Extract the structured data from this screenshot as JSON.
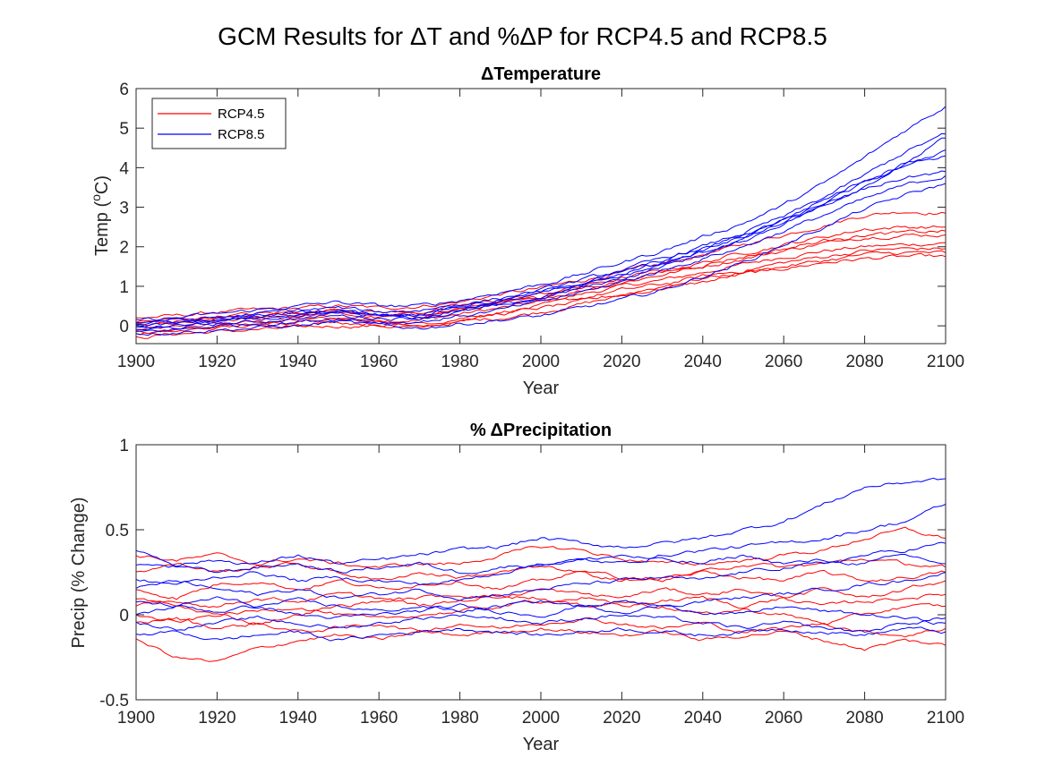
{
  "figure": {
    "title_prefix": "GCM Results for ",
    "title_delta_t": "T",
    "title_mid": " and %",
    "title_delta_p": "P",
    "title_suffix": " for RCP4.5 and RCP8.5"
  },
  "colors": {
    "rcp45": "#ff0000",
    "rcp85": "#0000ff",
    "axis": "#262626"
  },
  "chart_data": [
    {
      "type": "line",
      "title": "Temperature",
      "title_prefix_symbol": "delta",
      "xlabel": "Year",
      "ylabel": "Temp (°C)",
      "ylabel_parts": {
        "main": "Temp (",
        "sup": "o",
        "unit": "C)"
      },
      "xlim": [
        1900,
        2100
      ],
      "ylim": [
        -0.45,
        6
      ],
      "xticks": [
        1900,
        1920,
        1940,
        1960,
        1980,
        2000,
        2020,
        2040,
        2060,
        2080,
        2100
      ],
      "yticks": [
        0,
        1,
        2,
        3,
        4,
        5,
        6
      ],
      "legend": {
        "position": "top-left",
        "entries": [
          "RCP4.5",
          "RCP8.5"
        ]
      },
      "x": [
        1900,
        1910,
        1920,
        1930,
        1940,
        1950,
        1960,
        1970,
        1980,
        1990,
        2000,
        2010,
        2020,
        2030,
        2040,
        2050,
        2060,
        2070,
        2080,
        2090,
        2100
      ],
      "series": [
        {
          "name": "RCP4.5",
          "values": [
            -0.1,
            -0.05,
            0.05,
            0.1,
            0.15,
            0.2,
            0.15,
            0.15,
            0.3,
            0.45,
            0.6,
            0.8,
            1.0,
            1.15,
            1.35,
            1.55,
            1.75,
            1.9,
            2.0,
            2.05,
            2.1
          ]
        },
        {
          "name": "RCP4.5",
          "values": [
            0.2,
            0.25,
            0.35,
            0.4,
            0.45,
            0.5,
            0.45,
            0.5,
            0.6,
            0.8,
            0.95,
            1.15,
            1.35,
            1.55,
            1.8,
            2.05,
            2.3,
            2.55,
            2.8,
            2.9,
            2.85
          ]
        },
        {
          "name": "RCP4.5",
          "values": [
            -0.3,
            -0.2,
            -0.15,
            -0.1,
            -0.05,
            0.0,
            0.0,
            -0.05,
            0.1,
            0.2,
            0.35,
            0.55,
            0.75,
            0.95,
            1.1,
            1.3,
            1.45,
            1.6,
            1.7,
            1.75,
            1.75
          ]
        },
        {
          "name": "RCP4.5",
          "values": [
            0.0,
            0.05,
            0.1,
            0.2,
            0.25,
            0.3,
            0.2,
            0.25,
            0.4,
            0.55,
            0.7,
            0.9,
            1.1,
            1.3,
            1.5,
            1.7,
            1.9,
            2.1,
            2.25,
            2.3,
            2.3
          ]
        },
        {
          "name": "RCP4.5",
          "values": [
            -0.15,
            -0.1,
            0.0,
            0.05,
            0.1,
            0.15,
            0.1,
            0.05,
            0.2,
            0.35,
            0.5,
            0.7,
            0.9,
            1.05,
            1.25,
            1.4,
            1.6,
            1.75,
            1.9,
            1.95,
            1.95
          ]
        },
        {
          "name": "RCP4.5",
          "values": [
            0.1,
            0.15,
            0.25,
            0.3,
            0.35,
            0.4,
            0.35,
            0.35,
            0.5,
            0.65,
            0.8,
            1.0,
            1.2,
            1.4,
            1.6,
            1.85,
            2.05,
            2.25,
            2.45,
            2.5,
            2.5
          ]
        },
        {
          "name": "RCP4.5",
          "values": [
            -0.2,
            -0.15,
            -0.05,
            0.0,
            0.05,
            0.1,
            0.05,
            0.0,
            0.15,
            0.3,
            0.45,
            0.6,
            0.8,
            1.0,
            1.2,
            1.35,
            1.5,
            1.65,
            1.8,
            1.85,
            1.85
          ]
        },
        {
          "name": "RCP4.5",
          "values": [
            0.05,
            0.1,
            0.2,
            0.25,
            0.3,
            0.35,
            0.25,
            0.3,
            0.45,
            0.6,
            0.75,
            0.95,
            1.15,
            1.35,
            1.55,
            1.75,
            1.95,
            2.15,
            2.3,
            2.35,
            2.4
          ]
        },
        {
          "name": "RCP8.5",
          "values": [
            -0.1,
            -0.05,
            0.05,
            0.1,
            0.2,
            0.25,
            0.2,
            0.2,
            0.35,
            0.5,
            0.7,
            0.95,
            1.2,
            1.5,
            1.8,
            2.15,
            2.6,
            3.05,
            3.55,
            4.1,
            4.75
          ]
        },
        {
          "name": "RCP8.5",
          "values": [
            0.15,
            0.2,
            0.3,
            0.4,
            0.5,
            0.6,
            0.5,
            0.5,
            0.65,
            0.85,
            1.05,
            1.3,
            1.6,
            1.9,
            2.25,
            2.6,
            3.05,
            3.6,
            4.25,
            4.95,
            5.55
          ]
        },
        {
          "name": "RCP8.5",
          "values": [
            -0.2,
            -0.15,
            -0.1,
            -0.05,
            0.0,
            0.1,
            0.0,
            -0.05,
            0.05,
            0.15,
            0.25,
            0.45,
            0.65,
            0.9,
            1.25,
            1.6,
            2.05,
            2.5,
            2.95,
            3.3,
            3.6
          ]
        },
        {
          "name": "RCP8.5",
          "values": [
            0.0,
            0.05,
            0.15,
            0.2,
            0.3,
            0.35,
            0.3,
            0.3,
            0.45,
            0.6,
            0.8,
            1.05,
            1.3,
            1.6,
            1.9,
            2.25,
            2.65,
            3.05,
            3.45,
            3.75,
            3.9
          ]
        },
        {
          "name": "RCP8.5",
          "values": [
            -0.05,
            0.0,
            0.1,
            0.15,
            0.25,
            0.3,
            0.25,
            0.2,
            0.4,
            0.55,
            0.75,
            1.0,
            1.25,
            1.55,
            1.85,
            2.2,
            2.6,
            3.1,
            3.6,
            4.05,
            4.45
          ]
        },
        {
          "name": "RCP8.5",
          "values": [
            0.1,
            0.15,
            0.2,
            0.3,
            0.4,
            0.45,
            0.35,
            0.4,
            0.55,
            0.7,
            0.9,
            1.15,
            1.4,
            1.7,
            2.0,
            2.35,
            2.75,
            3.25,
            3.8,
            4.4,
            4.85
          ]
        },
        {
          "name": "RCP8.5",
          "values": [
            -0.15,
            -0.1,
            0.0,
            0.05,
            0.1,
            0.2,
            0.1,
            0.1,
            0.25,
            0.4,
            0.6,
            0.85,
            1.1,
            1.4,
            1.7,
            2.0,
            2.4,
            2.8,
            3.2,
            3.55,
            3.8
          ]
        },
        {
          "name": "RCP8.5",
          "values": [
            0.05,
            0.1,
            0.15,
            0.25,
            0.35,
            0.4,
            0.3,
            0.3,
            0.5,
            0.65,
            0.85,
            1.1,
            1.35,
            1.65,
            1.95,
            2.3,
            2.7,
            3.2,
            3.7,
            4.1,
            4.3
          ]
        }
      ]
    },
    {
      "type": "line",
      "title": "Precipitation",
      "title_prefix": "% ",
      "title_prefix_symbol": "delta",
      "xlabel": "Year",
      "ylabel": "Precip (% Change)",
      "xlim": [
        1900,
        2100
      ],
      "ylim": [
        -0.5,
        1
      ],
      "xticks": [
        1900,
        1920,
        1940,
        1960,
        1980,
        2000,
        2020,
        2040,
        2060,
        2080,
        2100
      ],
      "yticks": [
        -0.5,
        0,
        0.5,
        1
      ],
      "ytick_labels": [
        "-0.5",
        "0",
        "0.5",
        "1"
      ],
      "x": [
        1900,
        1910,
        1920,
        1930,
        1940,
        1950,
        1960,
        1970,
        1980,
        1990,
        2000,
        2010,
        2020,
        2030,
        2040,
        2050,
        2060,
        2070,
        2080,
        2090,
        2100
      ],
      "series": [
        {
          "name": "RCP4.5",
          "values": [
            0.35,
            0.32,
            0.35,
            0.3,
            0.33,
            0.3,
            0.28,
            0.3,
            0.3,
            0.35,
            0.4,
            0.38,
            0.33,
            0.3,
            0.3,
            0.32,
            0.35,
            0.38,
            0.45,
            0.5,
            0.45
          ]
        },
        {
          "name": "RCP4.5",
          "values": [
            0.0,
            -0.05,
            0.0,
            0.02,
            0.05,
            0.0,
            -0.03,
            0.0,
            0.02,
            0.05,
            0.08,
            0.1,
            0.05,
            0.08,
            0.1,
            0.05,
            0.1,
            0.15,
            0.1,
            0.15,
            0.2
          ]
        },
        {
          "name": "RCP4.5",
          "values": [
            -0.15,
            -0.25,
            -0.28,
            -0.2,
            -0.15,
            -0.12,
            -0.15,
            -0.1,
            -0.12,
            -0.1,
            -0.08,
            -0.1,
            -0.12,
            -0.1,
            -0.15,
            -0.12,
            -0.1,
            -0.15,
            -0.2,
            -0.15,
            -0.18
          ]
        },
        {
          "name": "RCP4.5",
          "values": [
            0.15,
            0.1,
            0.18,
            0.2,
            0.15,
            0.2,
            0.15,
            0.18,
            0.2,
            0.15,
            0.2,
            0.25,
            0.2,
            0.22,
            0.25,
            0.3,
            0.28,
            0.3,
            0.33,
            0.3,
            0.28
          ]
        },
        {
          "name": "RCP4.5",
          "values": [
            0.05,
            0.08,
            0.05,
            0.1,
            0.08,
            0.12,
            0.1,
            0.05,
            0.08,
            0.12,
            0.1,
            0.05,
            0.08,
            0.05,
            0.0,
            0.03,
            0.0,
            -0.05,
            0.0,
            0.05,
            0.05
          ]
        },
        {
          "name": "RCP4.5",
          "values": [
            -0.05,
            -0.02,
            -0.08,
            -0.05,
            -0.1,
            -0.08,
            -0.05,
            -0.1,
            -0.05,
            -0.08,
            -0.05,
            -0.02,
            -0.05,
            -0.08,
            -0.05,
            -0.1,
            -0.08,
            -0.05,
            -0.1,
            -0.12,
            -0.08
          ]
        },
        {
          "name": "RCP4.5",
          "values": [
            0.25,
            0.3,
            0.25,
            0.28,
            0.3,
            0.25,
            0.2,
            0.25,
            0.22,
            0.25,
            0.28,
            0.25,
            0.22,
            0.2,
            0.25,
            0.22,
            0.2,
            0.25,
            0.2,
            0.22,
            0.25
          ]
        },
        {
          "name": "RCP4.5",
          "values": [
            0.1,
            0.05,
            0.0,
            -0.05,
            0.0,
            0.05,
            0.08,
            0.1,
            0.12,
            0.1,
            0.15,
            0.12,
            0.1,
            0.15,
            0.12,
            0.15,
            0.1,
            0.05,
            0.08,
            0.1,
            0.12
          ]
        },
        {
          "name": "RCP8.5",
          "values": [
            0.38,
            0.3,
            0.32,
            0.3,
            0.35,
            0.3,
            0.32,
            0.35,
            0.38,
            0.4,
            0.45,
            0.42,
            0.4,
            0.42,
            0.45,
            0.5,
            0.55,
            0.65,
            0.75,
            0.78,
            0.8
          ]
        },
        {
          "name": "RCP8.5",
          "values": [
            0.2,
            0.18,
            0.22,
            0.25,
            0.2,
            0.22,
            0.2,
            0.18,
            0.2,
            0.25,
            0.3,
            0.32,
            0.3,
            0.35,
            0.38,
            0.4,
            0.42,
            0.45,
            0.5,
            0.55,
            0.65
          ]
        },
        {
          "name": "RCP8.5",
          "values": [
            0.0,
            0.05,
            0.02,
            0.05,
            0.0,
            -0.02,
            0.0,
            0.02,
            0.05,
            0.02,
            0.0,
            0.05,
            0.08,
            0.05,
            0.02,
            0.0,
            0.05,
            0.02,
            0.0,
            -0.02,
            -0.05
          ]
        },
        {
          "name": "RCP8.5",
          "values": [
            -0.12,
            -0.1,
            -0.15,
            -0.12,
            -0.1,
            -0.15,
            -0.12,
            -0.1,
            -0.08,
            -0.1,
            -0.12,
            -0.1,
            -0.08,
            -0.1,
            -0.12,
            -0.1,
            -0.08,
            -0.1,
            -0.12,
            -0.08,
            -0.1
          ]
        },
        {
          "name": "RCP8.5",
          "values": [
            0.15,
            0.2,
            0.15,
            0.12,
            0.15,
            0.1,
            0.12,
            0.15,
            0.1,
            0.12,
            0.15,
            0.18,
            0.2,
            0.22,
            0.2,
            0.25,
            0.28,
            0.3,
            0.35,
            0.38,
            0.42
          ]
        },
        {
          "name": "RCP8.5",
          "values": [
            0.08,
            0.05,
            0.1,
            0.05,
            0.08,
            0.05,
            0.02,
            0.05,
            0.02,
            0.05,
            0.08,
            0.05,
            0.02,
            0.05,
            0.08,
            0.1,
            0.12,
            0.15,
            0.18,
            0.2,
            0.25
          ]
        },
        {
          "name": "RCP8.5",
          "values": [
            -0.05,
            -0.08,
            -0.05,
            -0.02,
            -0.05,
            -0.08,
            -0.05,
            -0.02,
            0.0,
            -0.02,
            -0.05,
            -0.02,
            0.0,
            -0.02,
            -0.05,
            -0.08,
            -0.05,
            -0.08,
            -0.1,
            -0.05,
            -0.02
          ]
        },
        {
          "name": "RCP8.5",
          "values": [
            0.3,
            0.28,
            0.25,
            0.28,
            0.3,
            0.25,
            0.28,
            0.3,
            0.25,
            0.28,
            0.3,
            0.32,
            0.35,
            0.32,
            0.3,
            0.35,
            0.3,
            0.32,
            0.3,
            0.35,
            0.3
          ]
        }
      ]
    }
  ]
}
